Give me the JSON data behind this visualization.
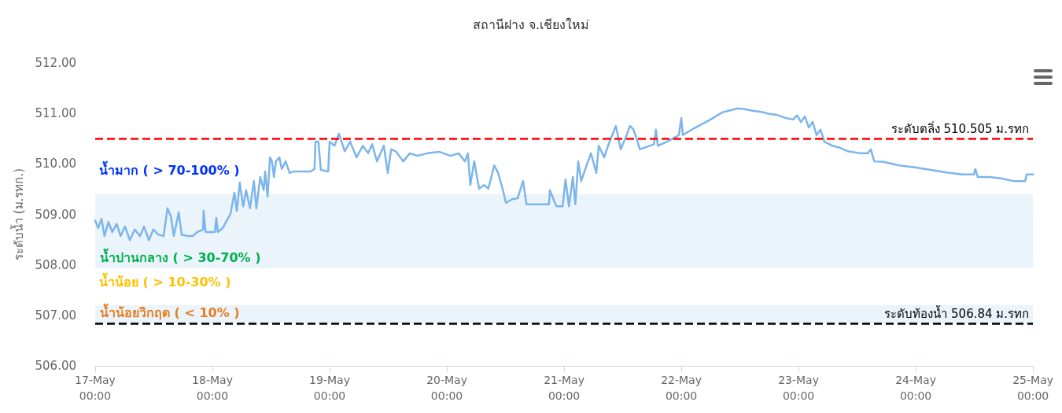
{
  "chart_data": {
    "type": "line",
    "title": "สถานีฝาง จ.เชียงใหม่",
    "ylabel": "ระดับน้ำ (ม.รทก.)",
    "x": [
      "--05-17T00:00",
      "--05-17T00:36",
      "--05-17T01:18",
      "--05-17T01:54",
      "--05-17T02:42",
      "--05-17T03:30",
      "--05-17T04:24",
      "--05-17T05:12",
      "--05-17T06:06",
      "--05-17T07:06",
      "--05-17T08:06",
      "--05-17T09:12",
      "--05-17T10:00",
      "--05-17T11:00",
      "--05-17T11:54",
      "--05-17T12:54",
      "--05-17T14:00",
      "--05-17T14:48",
      "--05-17T15:30",
      "--05-17T16:06",
      "--05-17T17:06",
      "--05-17T17:42",
      "--05-17T19:00",
      "--05-17T20:00",
      "--05-17T20:54",
      "--05-17T22:06",
      "--05-17T22:12",
      "--05-17T22:36",
      "--05-18T00:30",
      "--05-18T00:48",
      "--05-18T01:06",
      "--05-18T02:06",
      "--05-18T03:42",
      "--05-18T04:30",
      "--05-18T05:00",
      "--05-18T05:36",
      "--05-18T06:18",
      "--05-18T06:54",
      "--05-18T07:42",
      "--05-18T08:30",
      "--05-18T09:00",
      "--05-18T09:48",
      "--05-18T10:30",
      "--05-18T10:48",
      "--05-18T11:18",
      "--05-18T11:48",
      "--05-18T12:12",
      "--05-18T12:36",
      "--05-18T13:00",
      "--05-18T13:42",
      "--05-18T14:12",
      "--05-18T15:00",
      "--05-18T15:48",
      "--05-18T16:36",
      "--05-18T18:30",
      "--05-18T20:06",
      "--05-18T20:54",
      "--05-18T21:06",
      "--05-18T21:42",
      "--05-18T22:12",
      "--05-18T23:42",
      "--05-19T00:00",
      "--05-19T01:00",
      "--05-19T01:54",
      "--05-19T03:06",
      "--05-19T04:12",
      "--05-19T05:30",
      "--05-19T06:48",
      "--05-19T07:54",
      "--05-19T08:42",
      "--05-19T09:42",
      "--05-19T11:06",
      "--05-19T11:54",
      "--05-19T12:36",
      "--05-19T13:30",
      "--05-19T15:06",
      "--05-19T16:24",
      "--05-19T18:00",
      "--05-19T20:00",
      "--05-19T22:24",
      "--05-20T00:48",
      "--05-20T02:24",
      "--05-20T03:42",
      "--05-20T04:18",
      "--05-20T04:48",
      "--05-20T05:36",
      "--05-20T06:36",
      "--05-20T07:36",
      "--05-20T08:30",
      "--05-20T09:42",
      "--05-20T10:30",
      "--05-20T11:24",
      "--05-20T12:06",
      "--05-20T13:24",
      "--05-20T14:30",
      "--05-20T15:36",
      "--05-20T16:18",
      "--05-20T18:30",
      "--05-20T20:54",
      "--05-20T21:06",
      "--05-20T22:06",
      "--05-20T22:30",
      "--05-20T23:42",
      "--05-21T00:18",
      "--05-21T01:00",
      "--05-21T01:48",
      "--05-21T02:18",
      "--05-21T02:54",
      "--05-21T03:30",
      "--05-21T04:30",
      "--05-21T05:30",
      "--05-21T06:36",
      "--05-21T07:06",
      "--05-21T08:12",
      "--05-21T09:00",
      "--05-21T10:36",
      "--05-21T11:36",
      "--05-21T12:36",
      "--05-21T13:30",
      "--05-21T14:12",
      "--05-21T14:48",
      "--05-21T15:30",
      "--05-21T16:42",
      "--05-21T18:24",
      "--05-21T18:48",
      "--05-21T19:12",
      "--05-21T21:06",
      "--05-21T23:30",
      "--05-22T00:00",
      "--05-22T00:18",
      "--05-22T02:42",
      "--05-22T06:00",
      "--05-22T08:24",
      "--05-22T10:00",
      "--05-22T11:36",
      "--05-22T13:12",
      "--05-22T14:48",
      "--05-22T16:24",
      "--05-22T18:00",
      "--05-22T19:36",
      "--05-22T21:18",
      "--05-22T22:54",
      "--05-22T23:42",
      "--05-23T00:30",
      "--05-23T01:18",
      "--05-23T02:06",
      "--05-23T02:54",
      "--05-23T03:42",
      "--05-23T04:30",
      "--05-23T05:18",
      "--05-23T06:54",
      "--05-23T08:30",
      "--05-23T10:06",
      "--05-23T12:36",
      "--05-23T14:12",
      "--05-23T14:48",
      "--05-23T15:30",
      "--05-23T17:24",
      "--05-23T20:36",
      "--05-23T23:48",
      "--05-24T03:06",
      "--05-24T06:18",
      "--05-24T09:30",
      "--05-24T11:54",
      "--05-24T12:12",
      "--05-24T12:42",
      "--05-24T15:06",
      "--05-24T17:36",
      "--05-24T20:00",
      "--05-24T22:24",
      "--05-24T22:42",
      "--05-25T00:00"
    ],
    "series": [
      {
        "color": "#7cb5ec",
        "values": [
          508.88,
          508.73,
          508.91,
          508.57,
          508.85,
          508.65,
          508.81,
          508.57,
          508.76,
          508.49,
          508.7,
          508.57,
          508.76,
          508.49,
          508.7,
          508.6,
          508.57,
          509.12,
          508.96,
          508.57,
          509.04,
          508.6,
          508.57,
          508.57,
          508.65,
          508.7,
          509.07,
          508.65,
          508.65,
          508.93,
          508.65,
          508.73,
          509.01,
          509.43,
          509.07,
          509.63,
          509.16,
          509.48,
          509.12,
          509.66,
          509.12,
          509.74,
          509.48,
          509.85,
          509.35,
          510.13,
          510.05,
          509.74,
          510.05,
          510.13,
          509.9,
          510.05,
          509.82,
          509.85,
          509.85,
          509.85,
          509.9,
          510.44,
          510.44,
          509.88,
          509.85,
          510.44,
          510.36,
          510.6,
          510.25,
          510.44,
          510.13,
          510.36,
          510.21,
          510.39,
          510.05,
          510.36,
          509.82,
          510.29,
          510.25,
          510.05,
          510.21,
          510.16,
          510.21,
          510.24,
          510.16,
          510.21,
          510.05,
          510.21,
          509.58,
          510.05,
          509.51,
          509.58,
          509.51,
          509.97,
          509.82,
          509.51,
          509.23,
          509.3,
          509.32,
          509.66,
          509.2,
          509.2,
          509.2,
          509.48,
          509.23,
          509.16,
          509.16,
          509.69,
          509.16,
          509.74,
          509.2,
          510.05,
          509.66,
          509.94,
          510.21,
          509.82,
          510.36,
          510.13,
          510.36,
          510.75,
          510.29,
          510.52,
          510.75,
          510.68,
          510.52,
          510.29,
          510.33,
          510.39,
          510.68,
          510.36,
          510.44,
          510.57,
          510.91,
          510.57,
          510.71,
          510.88,
          511.02,
          511.06,
          511.1,
          511.08,
          511.05,
          511.03,
          510.99,
          510.97,
          510.91,
          510.88,
          510.96,
          510.83,
          510.94,
          510.72,
          510.83,
          510.57,
          510.68,
          510.44,
          510.36,
          510.32,
          510.25,
          510.21,
          510.21,
          510.29,
          510.05,
          510.04,
          509.97,
          509.93,
          509.88,
          509.83,
          509.79,
          509.79,
          509.9,
          509.74,
          509.74,
          509.71,
          509.66,
          509.66,
          509.79,
          509.79
        ]
      }
    ],
    "xlim": [
      "--05-17T00:00",
      "--05-25T00:00"
    ],
    "xticks": [
      {
        "value": "--05-17T00:00",
        "label": "17-May\n00:00"
      },
      {
        "value": "--05-18T00:00",
        "label": "18-May\n00:00"
      },
      {
        "value": "--05-19T00:00",
        "label": "19-May\n00:00"
      },
      {
        "value": "--05-20T00:00",
        "label": "20-May\n00:00"
      },
      {
        "value": "--05-21T00:00",
        "label": "21-May\n00:00"
      },
      {
        "value": "--05-22T00:00",
        "label": "22-May\n00:00"
      },
      {
        "value": "--05-23T00:00",
        "label": "23-May\n00:00"
      },
      {
        "value": "--05-24T00:00",
        "label": "24-May\n00:00"
      },
      {
        "value": "--05-25T00:00",
        "label": "25-May\n00:00"
      }
    ],
    "ylim": [
      506,
      512
    ],
    "yticks": [
      {
        "value": 506,
        "label": "506.00"
      },
      {
        "value": 507,
        "label": "507.00"
      },
      {
        "value": 508,
        "label": "508.00"
      },
      {
        "value": 509,
        "label": "509.00"
      },
      {
        "value": 510,
        "label": "510.00"
      },
      {
        "value": 511,
        "label": "511.00"
      },
      {
        "value": 512,
        "label": "512.00"
      }
    ],
    "bands": [
      {
        "axis": "y",
        "from": 507.93,
        "to": 509.4,
        "label": "น้ำปานกลาง ( > 30-70% )",
        "color": "#ebf4fa"
      },
      {
        "axis": "y",
        "from": 506.84,
        "to": 507.2,
        "label": "น้ำน้อยวิกฤต ( < 10% )",
        "color": "#ebf4fa"
      }
    ],
    "annotations": [
      "น้ำมาก ( > 70-100% )",
      "น้ำน้อย ( > 10-30% )"
    ],
    "ref_lines": [
      {
        "axis": "y",
        "value": 510.505,
        "label": "ระดับตลิ่ง 510.505 ม.รทก",
        "color": "#ff0000",
        "line_style": "dashed"
      },
      {
        "axis": "y",
        "value": 506.84,
        "label": "ระดับท้องน้ำ 506.84 ม.รทก",
        "color": "#000000",
        "line_style": "dashed"
      }
    ],
    "grid": false,
    "marker": "none",
    "line_style": "solid"
  }
}
